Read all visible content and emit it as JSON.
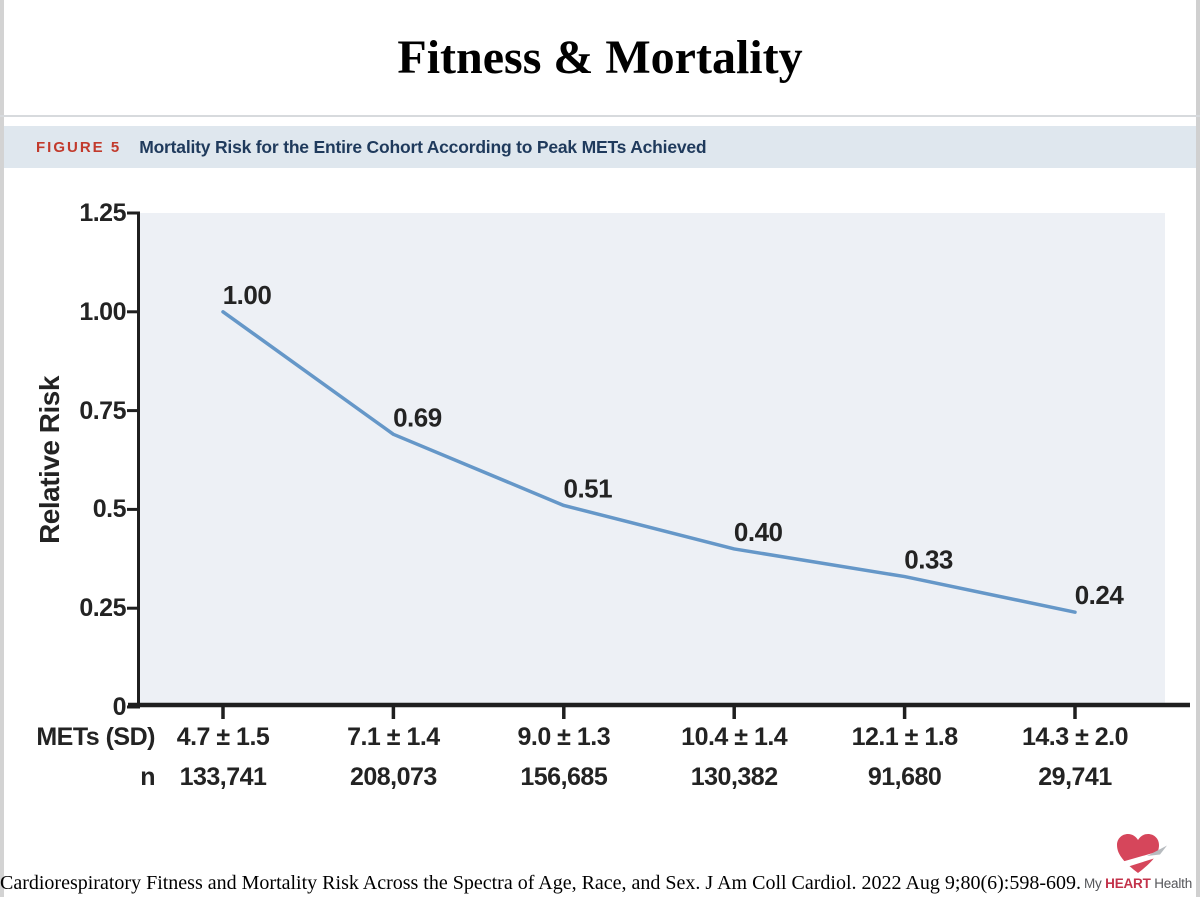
{
  "page": {
    "title": "Fitness & Mortality"
  },
  "figure_header": {
    "label": "FIGURE 5",
    "title": "Mortality Risk for the Entire Cohort According to Peak METs Achieved",
    "label_color": "#c23a2c",
    "title_color": "#1f3a5c",
    "bar_bg": "#dfe7ee"
  },
  "chart_data": {
    "type": "line",
    "title": "Mortality Risk for the Entire Cohort According to Peak METs Achieved",
    "ylabel": "Relative Risk",
    "ylim": [
      0,
      1.25
    ],
    "y_ticks": [
      "1.25",
      "1.00",
      "0.75",
      "0.5",
      "0.25",
      "0"
    ],
    "grid": false,
    "legend_position": "none",
    "plot_bg": "#edf0f5",
    "line_color": "#6597c8",
    "axis_color": "#1f1f1f",
    "series": [
      {
        "name": "Relative Risk",
        "values": [
          1.0,
          0.69,
          0.51,
          0.4,
          0.33,
          0.24
        ],
        "point_labels": [
          "1.00",
          "0.69",
          "0.51",
          "0.40",
          "0.33",
          "0.24"
        ]
      }
    ],
    "x_axis_rows": [
      {
        "header": "METs (SD)",
        "values": [
          "4.7 ± 1.5",
          "7.1 ± 1.4",
          "9.0 ± 1.3",
          "10.4 ± 1.4",
          "12.1 ± 1.8",
          "14.3 ± 2.0"
        ]
      },
      {
        "header": "n",
        "values": [
          "133,741",
          "208,073",
          "156,685",
          "130,382",
          "91,680",
          "29,741"
        ]
      }
    ]
  },
  "footer": {
    "citation": "Cardiorespiratory Fitness and Mortality Risk Across the Spectra of Age, Race, and Sex. J Am Coll Cardiol. 2022 Aug 9;80(6):598-609.",
    "logo": {
      "prefix": "My",
      "highlight": "HEART",
      "suffix": "Health",
      "heart_color": "#d6465b",
      "swoosh_tail_color": "#b7bbbf",
      "text_color": "#55565a",
      "highlight_color": "#c3334b"
    }
  }
}
